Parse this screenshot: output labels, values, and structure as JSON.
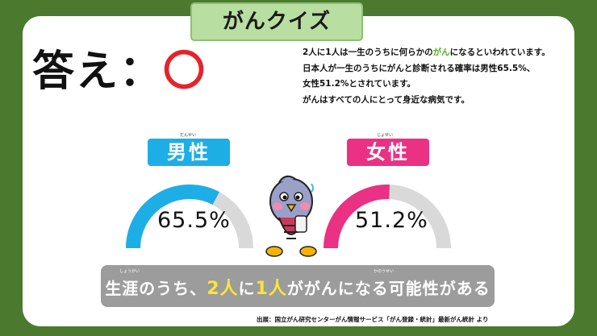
{
  "title": "がんクイズ",
  "answer": {
    "label": "答え：",
    "mark": "〇"
  },
  "description": {
    "line1_before": "2人に1人は一生のうちに何らかの",
    "line1_highlight": "がん",
    "line1_after": "になるといわれています。",
    "line2": "日本人が一生のうちにがんと診断される確率は男性65.5%、",
    "line3": "女性51.2%とされています。",
    "line4": "がんはすべての人にとって身近な病気です。"
  },
  "male": {
    "furigana": "だんせい",
    "label": "男性",
    "value_text": "65.5%",
    "percent": 65.5,
    "color": "#1eaee6"
  },
  "female": {
    "furigana": "じょせい",
    "label": "女性",
    "value_text": "51.2%",
    "percent": 51.2,
    "color": "#ea3183"
  },
  "bottom": {
    "part1": "生涯のうち、",
    "part2": "2人",
    "part3": "に",
    "part4": "1人",
    "part5": "ががんになる可能性がある",
    "furigana_lifetime": "しょうがい",
    "furigana_possibility": "かのうせい"
  },
  "source": "出展：国立がん研究センターがん情報サービス「がん登録・統計」最新がん統計 より",
  "colors": {
    "background": "#4b7a2e",
    "banner": "#b9dea1",
    "gauge_track": "#d9d9d9"
  }
}
